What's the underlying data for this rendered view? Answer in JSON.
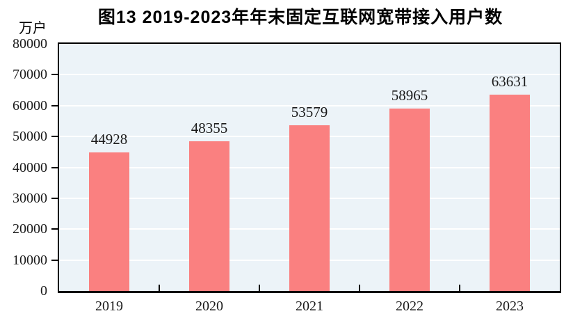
{
  "figure": {
    "title": "图13  2019-2023年年末固定互联网宽带接入用户数",
    "unit_label": "万户"
  },
  "chart_data": {
    "type": "bar",
    "title": "图13  2019-2023年年末固定互联网宽带接入用户数",
    "categories": [
      "2019",
      "2020",
      "2021",
      "2022",
      "2023"
    ],
    "values": [
      44928,
      48355,
      53579,
      58965,
      63631
    ],
    "xlabel": "",
    "ylabel": "万户",
    "ylim": [
      0,
      80000
    ],
    "yticks": [
      0,
      10000,
      20000,
      30000,
      40000,
      50000,
      60000,
      70000,
      80000
    ],
    "grid": true,
    "legend_position": "none",
    "data_labels": true,
    "colors": {
      "bar": "#fa8080",
      "plot_background": "#ecf3f8",
      "gridline": "#ffffff",
      "axis": "#000000",
      "text": "#1a1a1a"
    }
  }
}
